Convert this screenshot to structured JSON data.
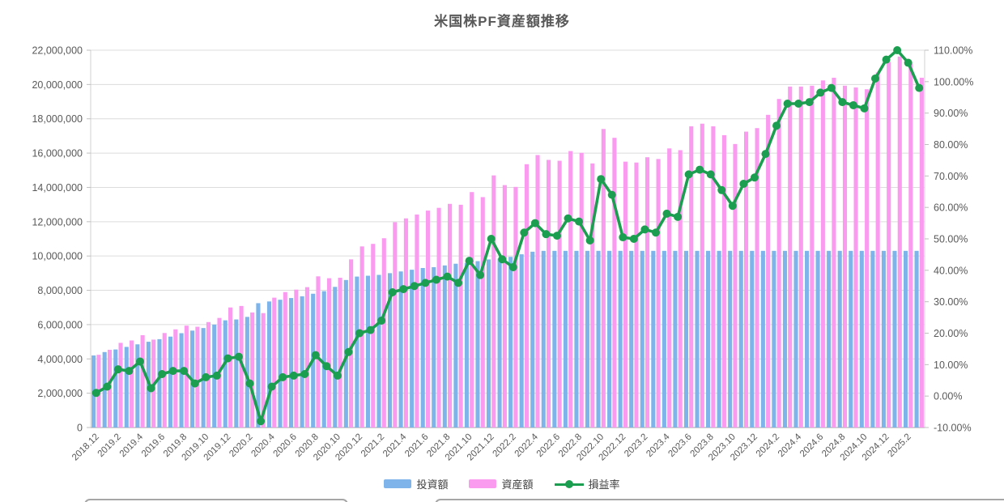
{
  "title": "米国株PF資産額推移",
  "legend": {
    "items": [
      {
        "id": "invest",
        "label": "投資額",
        "type": "bar",
        "color": "#7EB4EA"
      },
      {
        "id": "asset",
        "label": "資産額",
        "type": "bar",
        "color": "#FA9BF0"
      },
      {
        "id": "rate",
        "label": "損益率",
        "type": "line",
        "color": "#1C9E50"
      }
    ]
  },
  "chart_data": {
    "type": "combo",
    "title": "米国株PF資産額推移",
    "legend_position": "bottom",
    "grid": "horizontal",
    "categories": [
      "2018.12",
      "2019.1",
      "2019.2",
      "2019.3",
      "2019.4",
      "2019.5",
      "2019.6",
      "2019.7",
      "2019.8",
      "2019.9",
      "2019.10",
      "2019.11",
      "2019.12",
      "2020.1",
      "2020.2",
      "2020.3",
      "2020.4",
      "2020.5",
      "2020.6",
      "2020.7",
      "2020.8",
      "2020.9",
      "2020.10",
      "2020.11",
      "2020.12",
      "2021.1",
      "2021.2",
      "2021.3",
      "2021.4",
      "2021.5",
      "2021.6",
      "2021.7",
      "2021.8",
      "2021.9",
      "2021.10",
      "2021.11",
      "2021.12",
      "2022.1",
      "2022.2",
      "2022.3",
      "2022.4",
      "2022.5",
      "2022.6",
      "2022.7",
      "2022.8",
      "2022.9",
      "2022.10",
      "2022.11",
      "2022.12",
      "2023.1",
      "2023.2",
      "2023.3",
      "2023.4",
      "2023.5",
      "2023.6",
      "2023.7",
      "2023.8",
      "2023.9",
      "2023.10",
      "2023.11",
      "2023.12",
      "2024.1",
      "2024.2",
      "2024.3",
      "2024.4",
      "2024.5",
      "2024.6",
      "2024.7",
      "2024.8",
      "2024.9",
      "2024.10",
      "2024.11",
      "2024.12",
      "2025.1",
      "2025.2",
      "2025.3"
    ],
    "x_tick_labels": [
      "2018.12",
      "2019.2",
      "2019.4",
      "2019.6",
      "2019.8",
      "2019.10",
      "2019.12",
      "2020.2",
      "2020.4",
      "2020.6",
      "2020.8",
      "2020.10",
      "2020.12",
      "2021.2",
      "2021.4",
      "2021.6",
      "2021.8",
      "2021.10",
      "2021.12",
      "2022.2",
      "2022.4",
      "2022.6",
      "2022.8",
      "2022.10",
      "2022.12",
      "2023.2",
      "2023.4",
      "2023.6",
      "2023.8",
      "2023.10",
      "2023.12",
      "2024.2",
      "2024.4",
      "2024.6",
      "2024.8",
      "2024.10",
      "2024.12",
      "2025.2"
    ],
    "series": [
      {
        "name": "投資額",
        "type": "bar",
        "axis": "left",
        "color": "#7EB4EA",
        "values": [
          4200000,
          4400000,
          4550000,
          4700000,
          4850000,
          5000000,
          5150000,
          5300000,
          5500000,
          5650000,
          5800000,
          6000000,
          6250000,
          6300000,
          6450000,
          7250000,
          7350000,
          7450000,
          7550000,
          7650000,
          7800000,
          7950000,
          8200000,
          8600000,
          8800000,
          8850000,
          8900000,
          9000000,
          9100000,
          9200000,
          9300000,
          9350000,
          9450000,
          9550000,
          9600000,
          9700000,
          9800000,
          9850000,
          9950000,
          10100000,
          10250000,
          10300000,
          10300000,
          10300000,
          10300000,
          10300000,
          10300000,
          10300000,
          10300000,
          10300000,
          10300000,
          10300000,
          10300000,
          10300000,
          10300000,
          10300000,
          10300000,
          10300000,
          10300000,
          10300000,
          10300000,
          10300000,
          10300000,
          10300000,
          10300000,
          10300000,
          10300000,
          10300000,
          10300000,
          10300000,
          10300000,
          10300000,
          10300000,
          10300000,
          10300000,
          10300000
        ]
      },
      {
        "name": "資産額",
        "type": "bar",
        "axis": "left",
        "color": "#FA9BF0",
        "values": [
          4242000,
          4532000,
          4937000,
          5076000,
          5383000,
          5125000,
          5510000,
          5724000,
          5940000,
          5876000,
          6148000,
          6390000,
          7000000,
          7087000,
          6708000,
          6670000,
          7570000,
          7897000,
          8041000,
          8185000,
          8814000,
          8705000,
          8733000,
          9804000,
          10560000,
          10708000,
          11036000,
          11970000,
          12194000,
          12420000,
          12648000,
          12809000,
          13041000,
          12988000,
          13728000,
          13434000,
          14700000,
          14134000,
          14029000,
          15352000,
          15887000,
          15604000,
          15553000,
          16120000,
          16016000,
          15398000,
          17407000,
          16892000,
          15501000,
          15450000,
          15759000,
          15656000,
          16274000,
          16171000,
          17561000,
          17716000,
          17561000,
          17046000,
          16531000,
          17252000,
          17458000,
          18231000,
          19158000,
          19879000,
          19879000,
          19930000,
          20239000,
          20394000,
          19930000,
          19827000,
          19724000,
          20703000,
          21321000,
          21630000,
          21218000,
          20394000
        ]
      },
      {
        "name": "損益率",
        "type": "line",
        "axis": "right",
        "color": "#1C9E50",
        "values": [
          1,
          3,
          8.5,
          8,
          11,
          2.5,
          7,
          8,
          8,
          4,
          6,
          6.5,
          12,
          12.5,
          4,
          -8,
          3,
          6,
          6.5,
          7,
          13,
          9.5,
          6.5,
          14,
          20,
          21,
          24,
          33,
          34,
          35,
          36,
          37,
          38,
          36,
          43,
          38.5,
          50,
          43.5,
          41,
          52,
          55,
          51.5,
          51,
          56.5,
          55.5,
          49.5,
          69,
          64,
          50.5,
          50,
          53,
          52,
          58,
          57,
          70.5,
          72,
          70.5,
          65.5,
          60.5,
          67.5,
          69.5,
          77,
          86,
          93,
          93,
          93.5,
          96.5,
          98,
          93.5,
          92.5,
          91.5,
          101,
          107,
          110,
          106,
          98
        ]
      }
    ],
    "y_left": {
      "min": 0,
      "max": 22000000,
      "step": 2000000,
      "ticks": [
        "22,000,000",
        "20,000,000",
        "18,000,000",
        "16,000,000",
        "14,000,000",
        "12,000,000",
        "10,000,000",
        "8,000,000",
        "6,000,000",
        "4,000,000",
        "2,000,000",
        "0"
      ]
    },
    "y_right": {
      "min": -10,
      "max": 110,
      "step": 10,
      "ticks": [
        "110.00%",
        "100.00%",
        "90.00%",
        "80.00%",
        "70.00%",
        "60.00%",
        "50.00%",
        "40.00%",
        "30.00%",
        "20.00%",
        "10.00%",
        "0.00%",
        "-10.00%"
      ]
    }
  }
}
